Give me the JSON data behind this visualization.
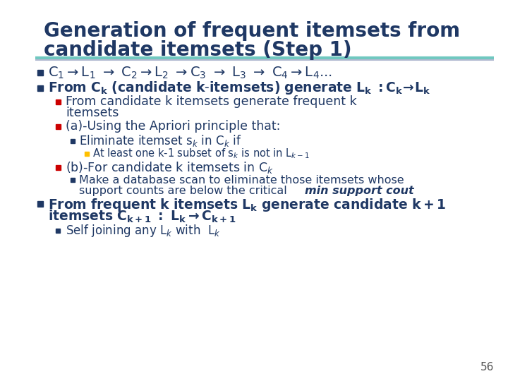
{
  "title_line1": "Generation of frequent itemsets from",
  "title_line2": "candidate itemsets (Step 1)",
  "title_color": "#1F3864",
  "bg_color": "#FFFFFF",
  "sep_color1": "#70C8C0",
  "sep_color2": "#B0B8D0",
  "page_number": "56",
  "navy": "#1F3864",
  "red": "#CC0000",
  "gold": "#FFC000"
}
